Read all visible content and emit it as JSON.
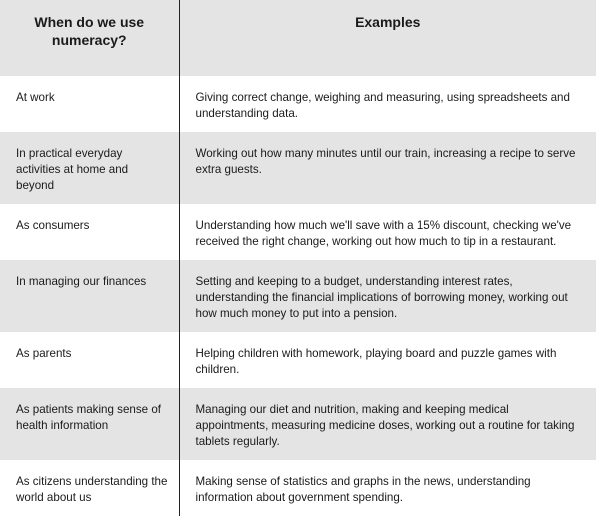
{
  "table": {
    "headers": [
      "When do we use numeracy?",
      "Examples"
    ],
    "rows": [
      {
        "when": "At work",
        "examples": "Giving correct change, weighing and measuring, using spreadsheets and understanding data."
      },
      {
        "when": "In practical everyday activities at home and beyond",
        "examples": "Working out how many minutes until our train, increasing a recipe to serve extra guests."
      },
      {
        "when": "As consumers",
        "examples": "Understanding how much we'll save with a 15% discount, checking we've received the right change, working out how much to tip in a restaurant."
      },
      {
        "when": "In managing our finances",
        "examples": "Setting and keeping to a budget, understanding interest rates, understanding the financial implications of borrowing money, working out how much money to put into a pension."
      },
      {
        "when": "As parents",
        "examples": "Helping children with homework, playing board and puzzle games with children."
      },
      {
        "when": "As patients making sense of health information",
        "examples": "Managing our diet and nutrition, making and keeping medical appointments, measuring medicine doses, working out a routine for taking tablets regularly."
      },
      {
        "when": "As citizens understanding the world about us",
        "examples": "Making sense of statistics and graphs in the news, understanding information about government spending."
      }
    ]
  }
}
